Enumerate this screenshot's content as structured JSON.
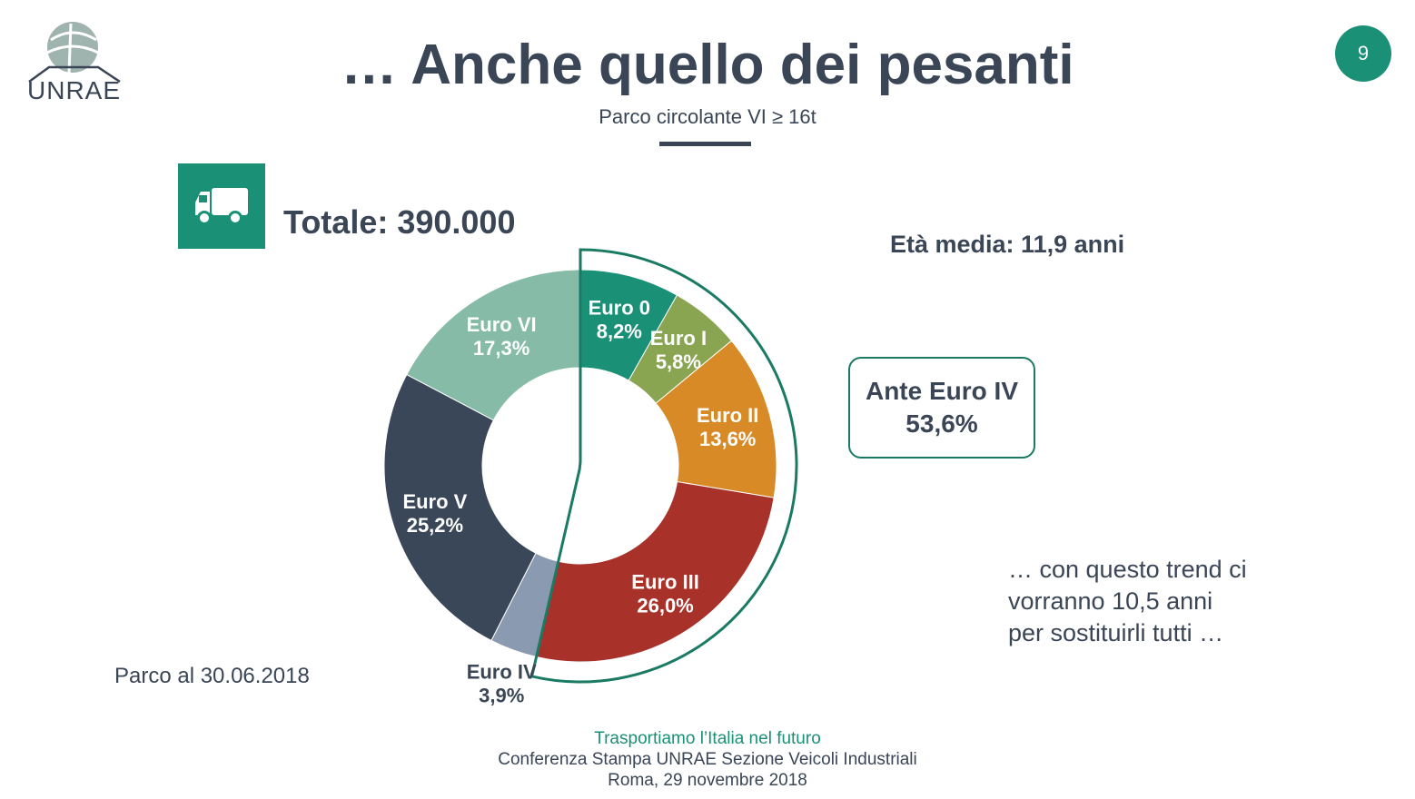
{
  "header": {
    "title": "… Anche quello dei pesanti",
    "subtitle": "Parco circolante VI ≥ 16t",
    "page_number": "9",
    "logo_text": "UNRAE"
  },
  "total_label": "Totale: 390.000",
  "eta_label": "Età media: 11,9 anni",
  "ante_box": {
    "line1": "Ante Euro IV",
    "line2": "53,6%"
  },
  "trend_text": [
    "… con questo trend ci",
    "vorranno 10,5 anni",
    "per sostituirli tutti …"
  ],
  "parco_label": "Parco al 30.06.2018",
  "footer": {
    "tagline": "Trasportiamo l’Italia nel futuro",
    "line1": "Conferenza Stampa UNRAE Sezione Veicoli Industriali",
    "line2": "Roma, 29 novembre 2018"
  },
  "colors": {
    "accent": "#1a9177",
    "text": "#3a4556"
  },
  "icons": {
    "truck": "truck-icon",
    "logo": "unrae-logo-icon"
  },
  "chart_data": {
    "type": "pie",
    "variant": "donut",
    "title": "",
    "slices": [
      {
        "name": "Euro 0",
        "value": 8.2,
        "label": "8,2%",
        "color": "#1a9177"
      },
      {
        "name": "Euro I",
        "value": 5.8,
        "label": "5,8%",
        "color": "#89a552"
      },
      {
        "name": "Euro II",
        "value": 13.6,
        "label": "13,6%",
        "color": "#d88a27"
      },
      {
        "name": "Euro III",
        "value": 26.0,
        "label": "26,0%",
        "color": "#a8322a"
      },
      {
        "name": "Euro IV",
        "value": 3.9,
        "label": "3,9%",
        "color": "#8a9ab1"
      },
      {
        "name": "Euro V",
        "value": 25.2,
        "label": "25,2%",
        "color": "#3a4759"
      },
      {
        "name": "Euro VI",
        "value": 17.3,
        "label": "17,3%",
        "color": "#86bba8"
      }
    ],
    "highlight": {
      "label": "Ante Euro IV",
      "value": 53.6,
      "members": [
        "Euro 0",
        "Euro I",
        "Euro II",
        "Euro III"
      ]
    }
  }
}
